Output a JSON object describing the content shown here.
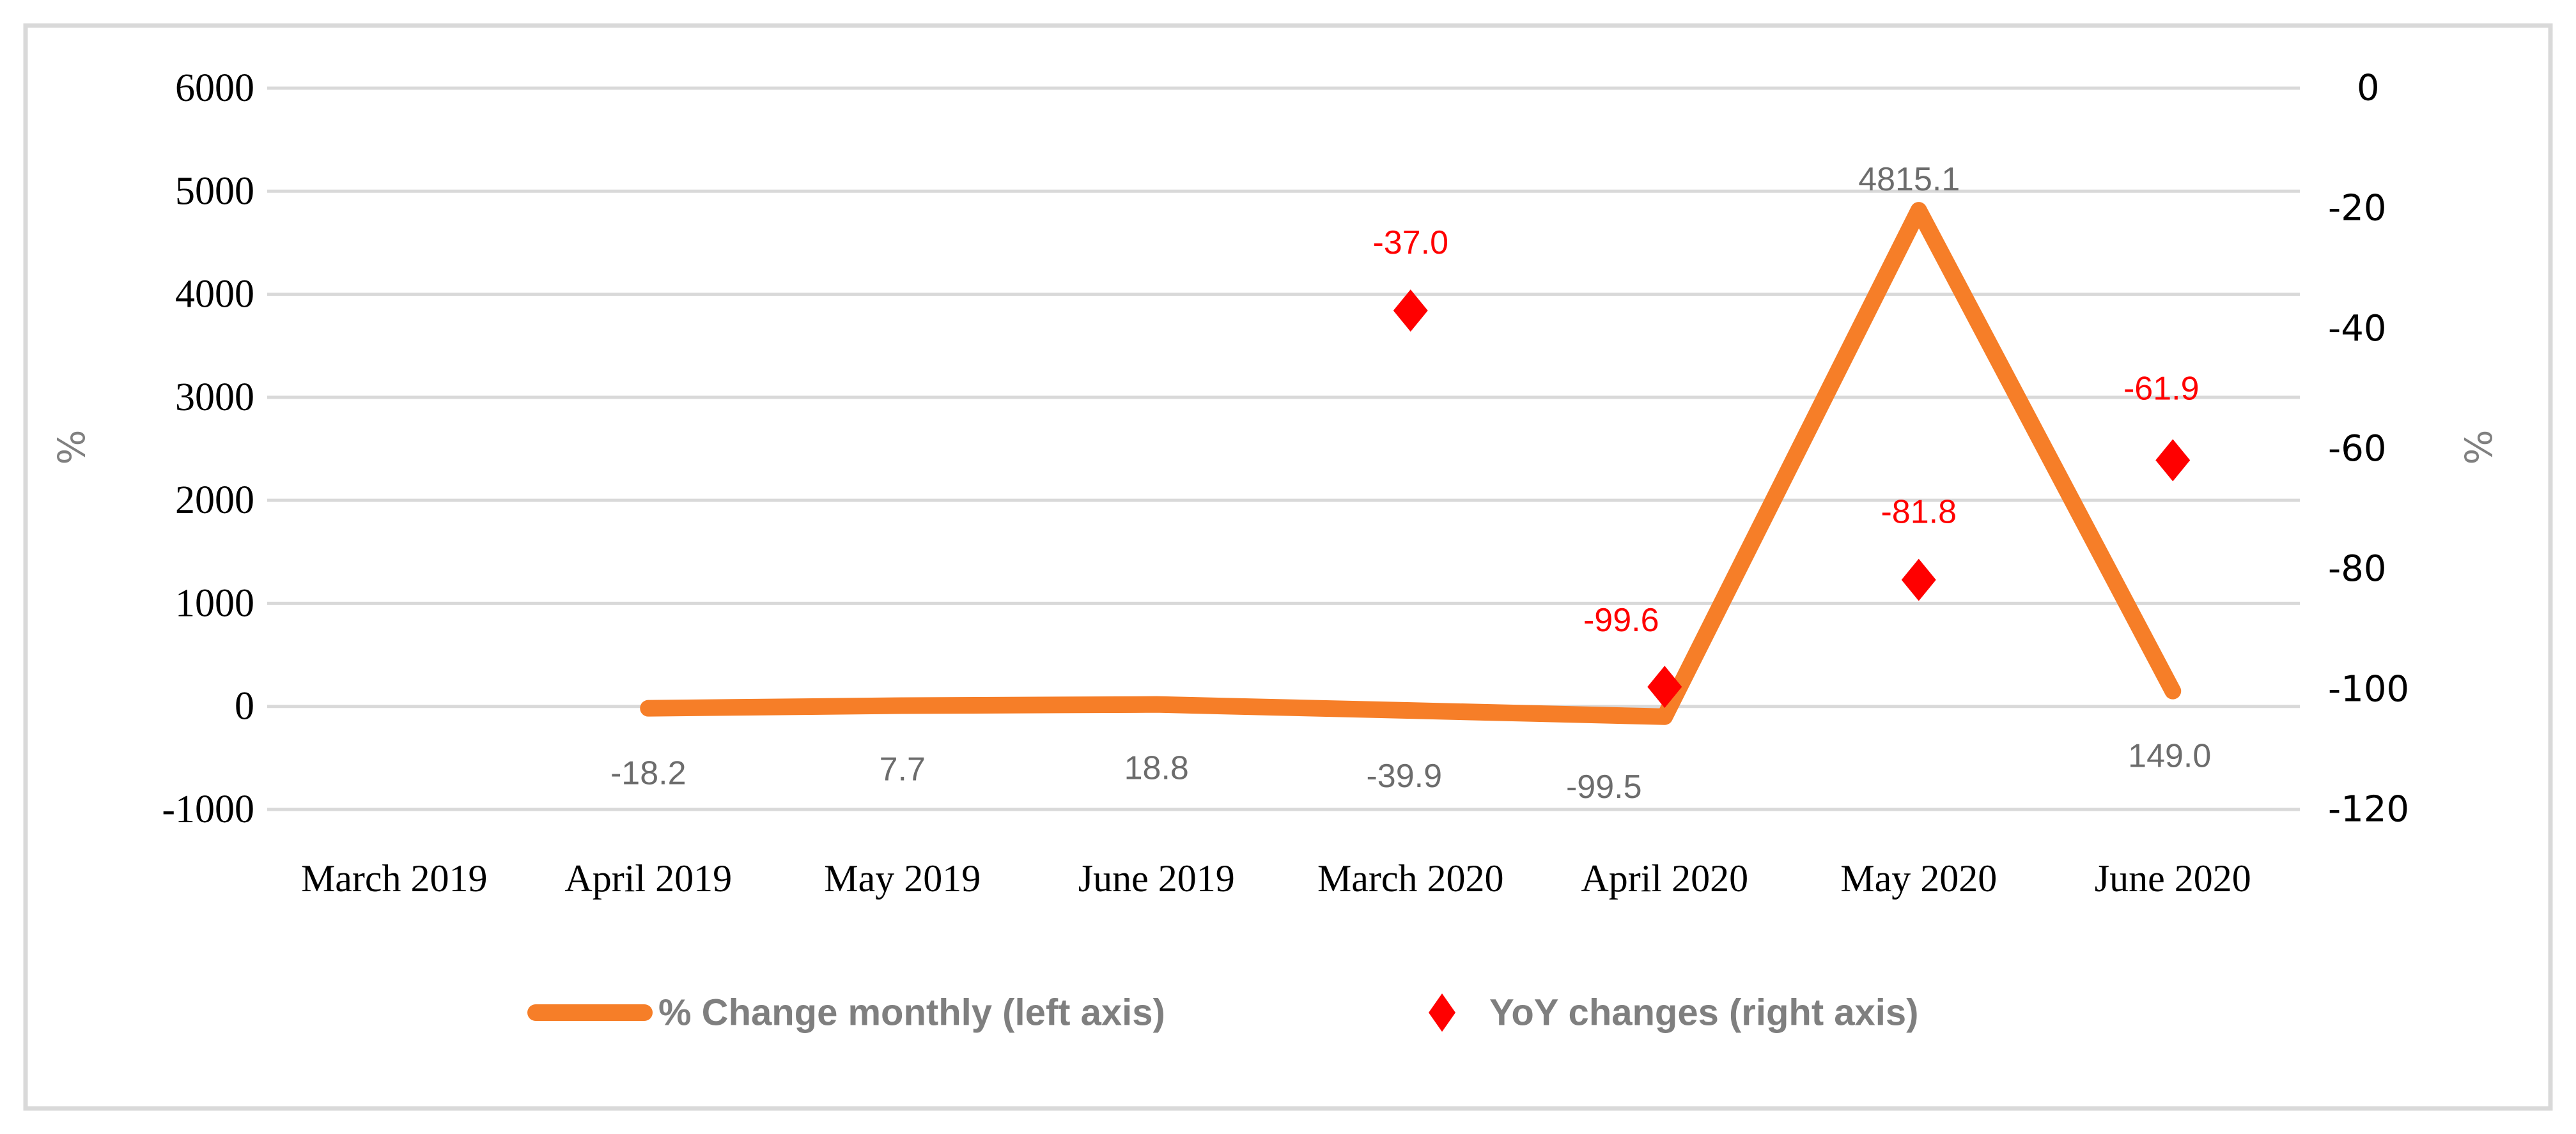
{
  "chart_data": {
    "type": "combo",
    "title": "",
    "categories": [
      "March 2019",
      "April 2019",
      "May 2019",
      "June 2019",
      "March 2020",
      "April 2020",
      "May 2020",
      "June 2020"
    ],
    "series": [
      {
        "name": "% Change monthly (left axis)",
        "chart_type": "line",
        "axis": "left",
        "color": "#F67E28",
        "values": [
          null,
          -18.2,
          7.7,
          18.8,
          -39.9,
          -99.5,
          4815.1,
          149.0
        ],
        "data_labels": [
          "",
          "-18.2",
          "7.7",
          "18.8",
          "-39.9",
          "-99.5",
          "4815.1",
          "149.0"
        ],
        "label_color": "#6C6C6C"
      },
      {
        "name": "YoY changes (right axis)",
        "chart_type": "scatter",
        "marker": "diamond",
        "axis": "right",
        "color": "#FF0000",
        "values": [
          null,
          null,
          null,
          null,
          -37.0,
          -99.6,
          -81.8,
          -61.9
        ],
        "data_labels": [
          "",
          "",
          "",
          "",
          "-37.0",
          "-99.6",
          "-81.8",
          "-61.9"
        ],
        "label_color": "#FF0000"
      }
    ],
    "left_axis": {
      "title": "%",
      "min": -1000,
      "max": 6000,
      "major_unit": 1000,
      "tick_labels": [
        "6000",
        "5000",
        "4000",
        "3000",
        "2000",
        "1000",
        "0",
        "-1000"
      ]
    },
    "right_axis": {
      "title": "%",
      "min": -120,
      "max": 0,
      "major_unit": 20,
      "tick_labels": [
        "0",
        "-20",
        "-40",
        "-60",
        "-80",
        "-100",
        "-120"
      ]
    },
    "legend": {
      "position": "bottom",
      "entries": [
        "% Change monthly (left axis)",
        "YoY changes (right axis)"
      ]
    },
    "grid": {
      "horizontal": true,
      "color": "#D9D9D9"
    },
    "frame_color": "#D9D9D9",
    "background": "#FFFFFF",
    "axis_title_color": "#808080",
    "legend_text_color": "#7F7F7F",
    "tick_text_color": "#000000"
  }
}
